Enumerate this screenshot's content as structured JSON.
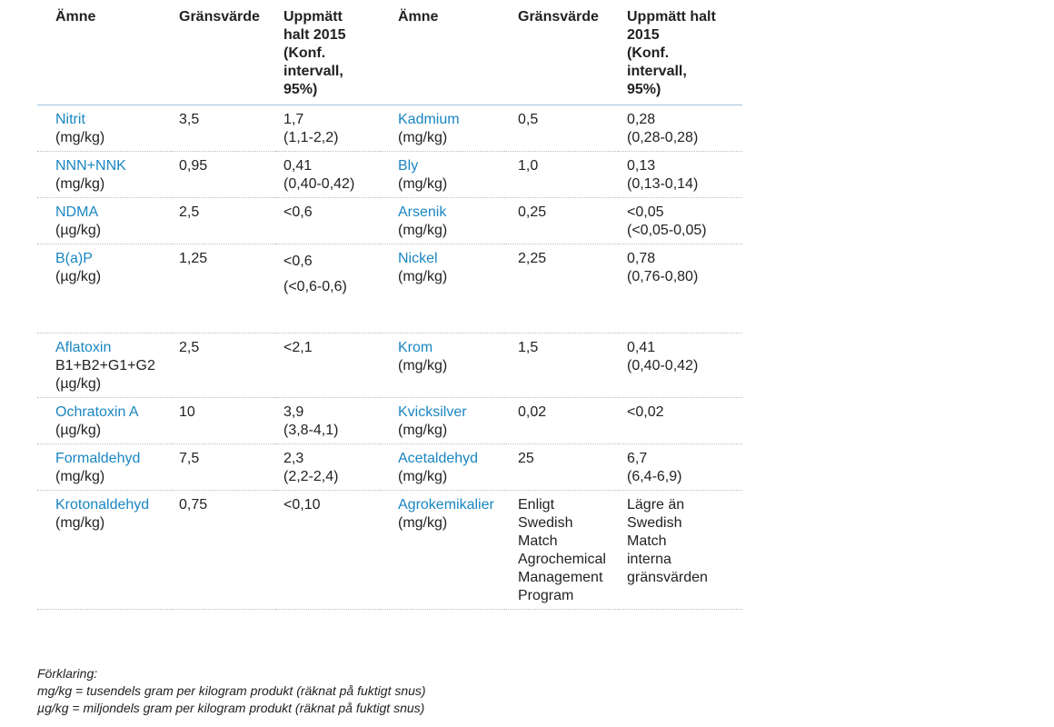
{
  "headers": [
    "Ämne",
    "Gränsvärde",
    "Uppmätt halt 2015 (Konf. intervall, 95%)",
    "Ämne",
    "Gränsvärde",
    "Uppmätt halt 2015 (Konf. intervall, 95%)"
  ],
  "header_lines": {
    "measured": [
      "Uppmätt",
      "halt 2015",
      "(Konf.",
      "intervall,",
      "95%)"
    ],
    "measured_right": [
      "Uppmätt halt",
      "2015",
      "(Konf.",
      "intervall,",
      "95%)"
    ]
  },
  "rows": [
    {
      "left": {
        "name": "Nitrit",
        "unit": "(mg/kg)",
        "limit": "3,5",
        "measured": [
          "1,7",
          "(1,1-2,2)"
        ]
      },
      "right": {
        "name": "Kadmium",
        "unit": "(mg/kg)",
        "limit": "0,5",
        "measured": [
          "0,28",
          "(0,28-0,28)"
        ]
      }
    },
    {
      "left": {
        "name": "NNN+NNK",
        "unit": "(mg/kg)",
        "limit": "0,95",
        "measured": [
          "0,41",
          "(0,40-0,42)"
        ]
      },
      "right": {
        "name": "Bly",
        "unit": "(mg/kg)",
        "limit": "1,0",
        "measured": [
          "0,13",
          "(0,13-0,14)"
        ]
      }
    },
    {
      "left": {
        "name": "NDMA",
        "unit": "(µg/kg)",
        "limit": "2,5",
        "measured": [
          "<0,6",
          ""
        ]
      },
      "right": {
        "name": "Arsenik",
        "unit": "(mg/kg)",
        "limit": "0,25",
        "measured": [
          "<0,05",
          "(<0,05-0,05)"
        ]
      }
    },
    {
      "left": {
        "name": "B(a)P",
        "unit": "(µg/kg)",
        "limit": "1,25",
        "measured": [
          "<0,6",
          "(<0,6-0,6)"
        ]
      },
      "right": {
        "name": "Nickel",
        "unit": "(mg/kg)",
        "limit": "2,25",
        "measured": [
          "0,78",
          "(0,76-0,80)"
        ]
      }
    },
    {
      "left": {
        "name": "Aflatoxin",
        "unit": "B1+B2+G1+G2",
        "unit2": "(µg/kg)",
        "limit": "2,5",
        "measured": [
          "<2,1",
          ""
        ]
      },
      "right": {
        "name": "Krom",
        "unit": "(mg/kg)",
        "limit": "1,5",
        "measured": [
          "0,41",
          "(0,40-0,42)"
        ]
      }
    },
    {
      "left": {
        "name": "Ochratoxin A",
        "unit": "(µg/kg)",
        "limit": "10",
        "measured": [
          "3,9",
          "(3,8-4,1)"
        ]
      },
      "right": {
        "name": "Kvicksilver",
        "unit": "(mg/kg)",
        "limit": "0,02",
        "measured": [
          "<0,02",
          ""
        ]
      }
    },
    {
      "left": {
        "name": "Formaldehyd",
        "unit": "(mg/kg)",
        "limit": "7,5",
        "measured": [
          "2,3",
          "(2,2-2,4)"
        ]
      },
      "right": {
        "name": "Acetaldehyd",
        "unit": "(mg/kg)",
        "limit": "25",
        "measured": [
          "6,7",
          "(6,4-6,9)"
        ]
      }
    },
    {
      "left": {
        "name": "Krotonaldehyd",
        "unit": "(mg/kg)",
        "limit": "0,75",
        "measured": [
          "<0,10",
          ""
        ]
      },
      "right": {
        "name": "Agrokemikalier",
        "unit": "(mg/kg)",
        "limit_lines": [
          "Enligt",
          "Swedish",
          "Match",
          "Agrochemical",
          "Management",
          "Program"
        ],
        "measured_lines": [
          "Lägre än",
          "Swedish",
          "Match",
          "interna",
          "gränsvärden"
        ]
      }
    }
  ],
  "legend": {
    "title": "Förklaring:",
    "line1": "mg/kg = tusendels gram per kilogram produkt (räknat på fuktigt snus)",
    "line2": "µg/kg = miljondels gram per kilogram produkt (räknat på fuktigt snus)"
  }
}
